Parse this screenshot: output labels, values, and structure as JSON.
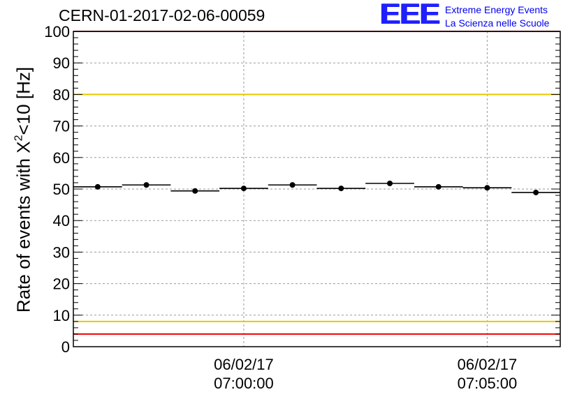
{
  "header": {
    "run_id": "CERN-01-2017-02-06-00059"
  },
  "logo": {
    "mark": "EEE",
    "line1": "Extreme Energy Events",
    "line2": "La Scienza nelle Scuole"
  },
  "chart_data": {
    "type": "scatter",
    "ylabel": {
      "main": "Rate of events with X",
      "sup": "2",
      "tail": "<10 [Hz]"
    },
    "ylim": [
      0,
      100
    ],
    "yticks": [
      0,
      10,
      20,
      30,
      40,
      50,
      60,
      70,
      80,
      90,
      100
    ],
    "xlim": [
      "06:56:30",
      "07:06:30"
    ],
    "xticks": [
      {
        "time": "07:00:00",
        "date": "06/02/17",
        "label": "07:00:00"
      },
      {
        "time": "07:05:00",
        "date": "06/02/17",
        "label": "07:05:00"
      }
    ],
    "grid": true,
    "reference_lines": [
      {
        "y": 80,
        "color": "#e8c800"
      },
      {
        "y": 8,
        "color": "#e8c800"
      },
      {
        "y": 100,
        "color": "#ee0000"
      },
      {
        "y": 4,
        "color": "#ee0000"
      }
    ],
    "series": [
      {
        "bin_width_seconds": 60,
        "x": [
          "06:57:00",
          "06:58:00",
          "06:59:00",
          "07:00:00",
          "07:01:00",
          "07:02:00",
          "07:03:00",
          "07:04:00",
          "07:05:00",
          "07:06:00"
        ],
        "values": [
          50.7,
          51.3,
          49.4,
          50.2,
          51.3,
          50.2,
          51.8,
          50.7,
          50.4,
          48.9
        ],
        "color": "#000000"
      }
    ]
  }
}
